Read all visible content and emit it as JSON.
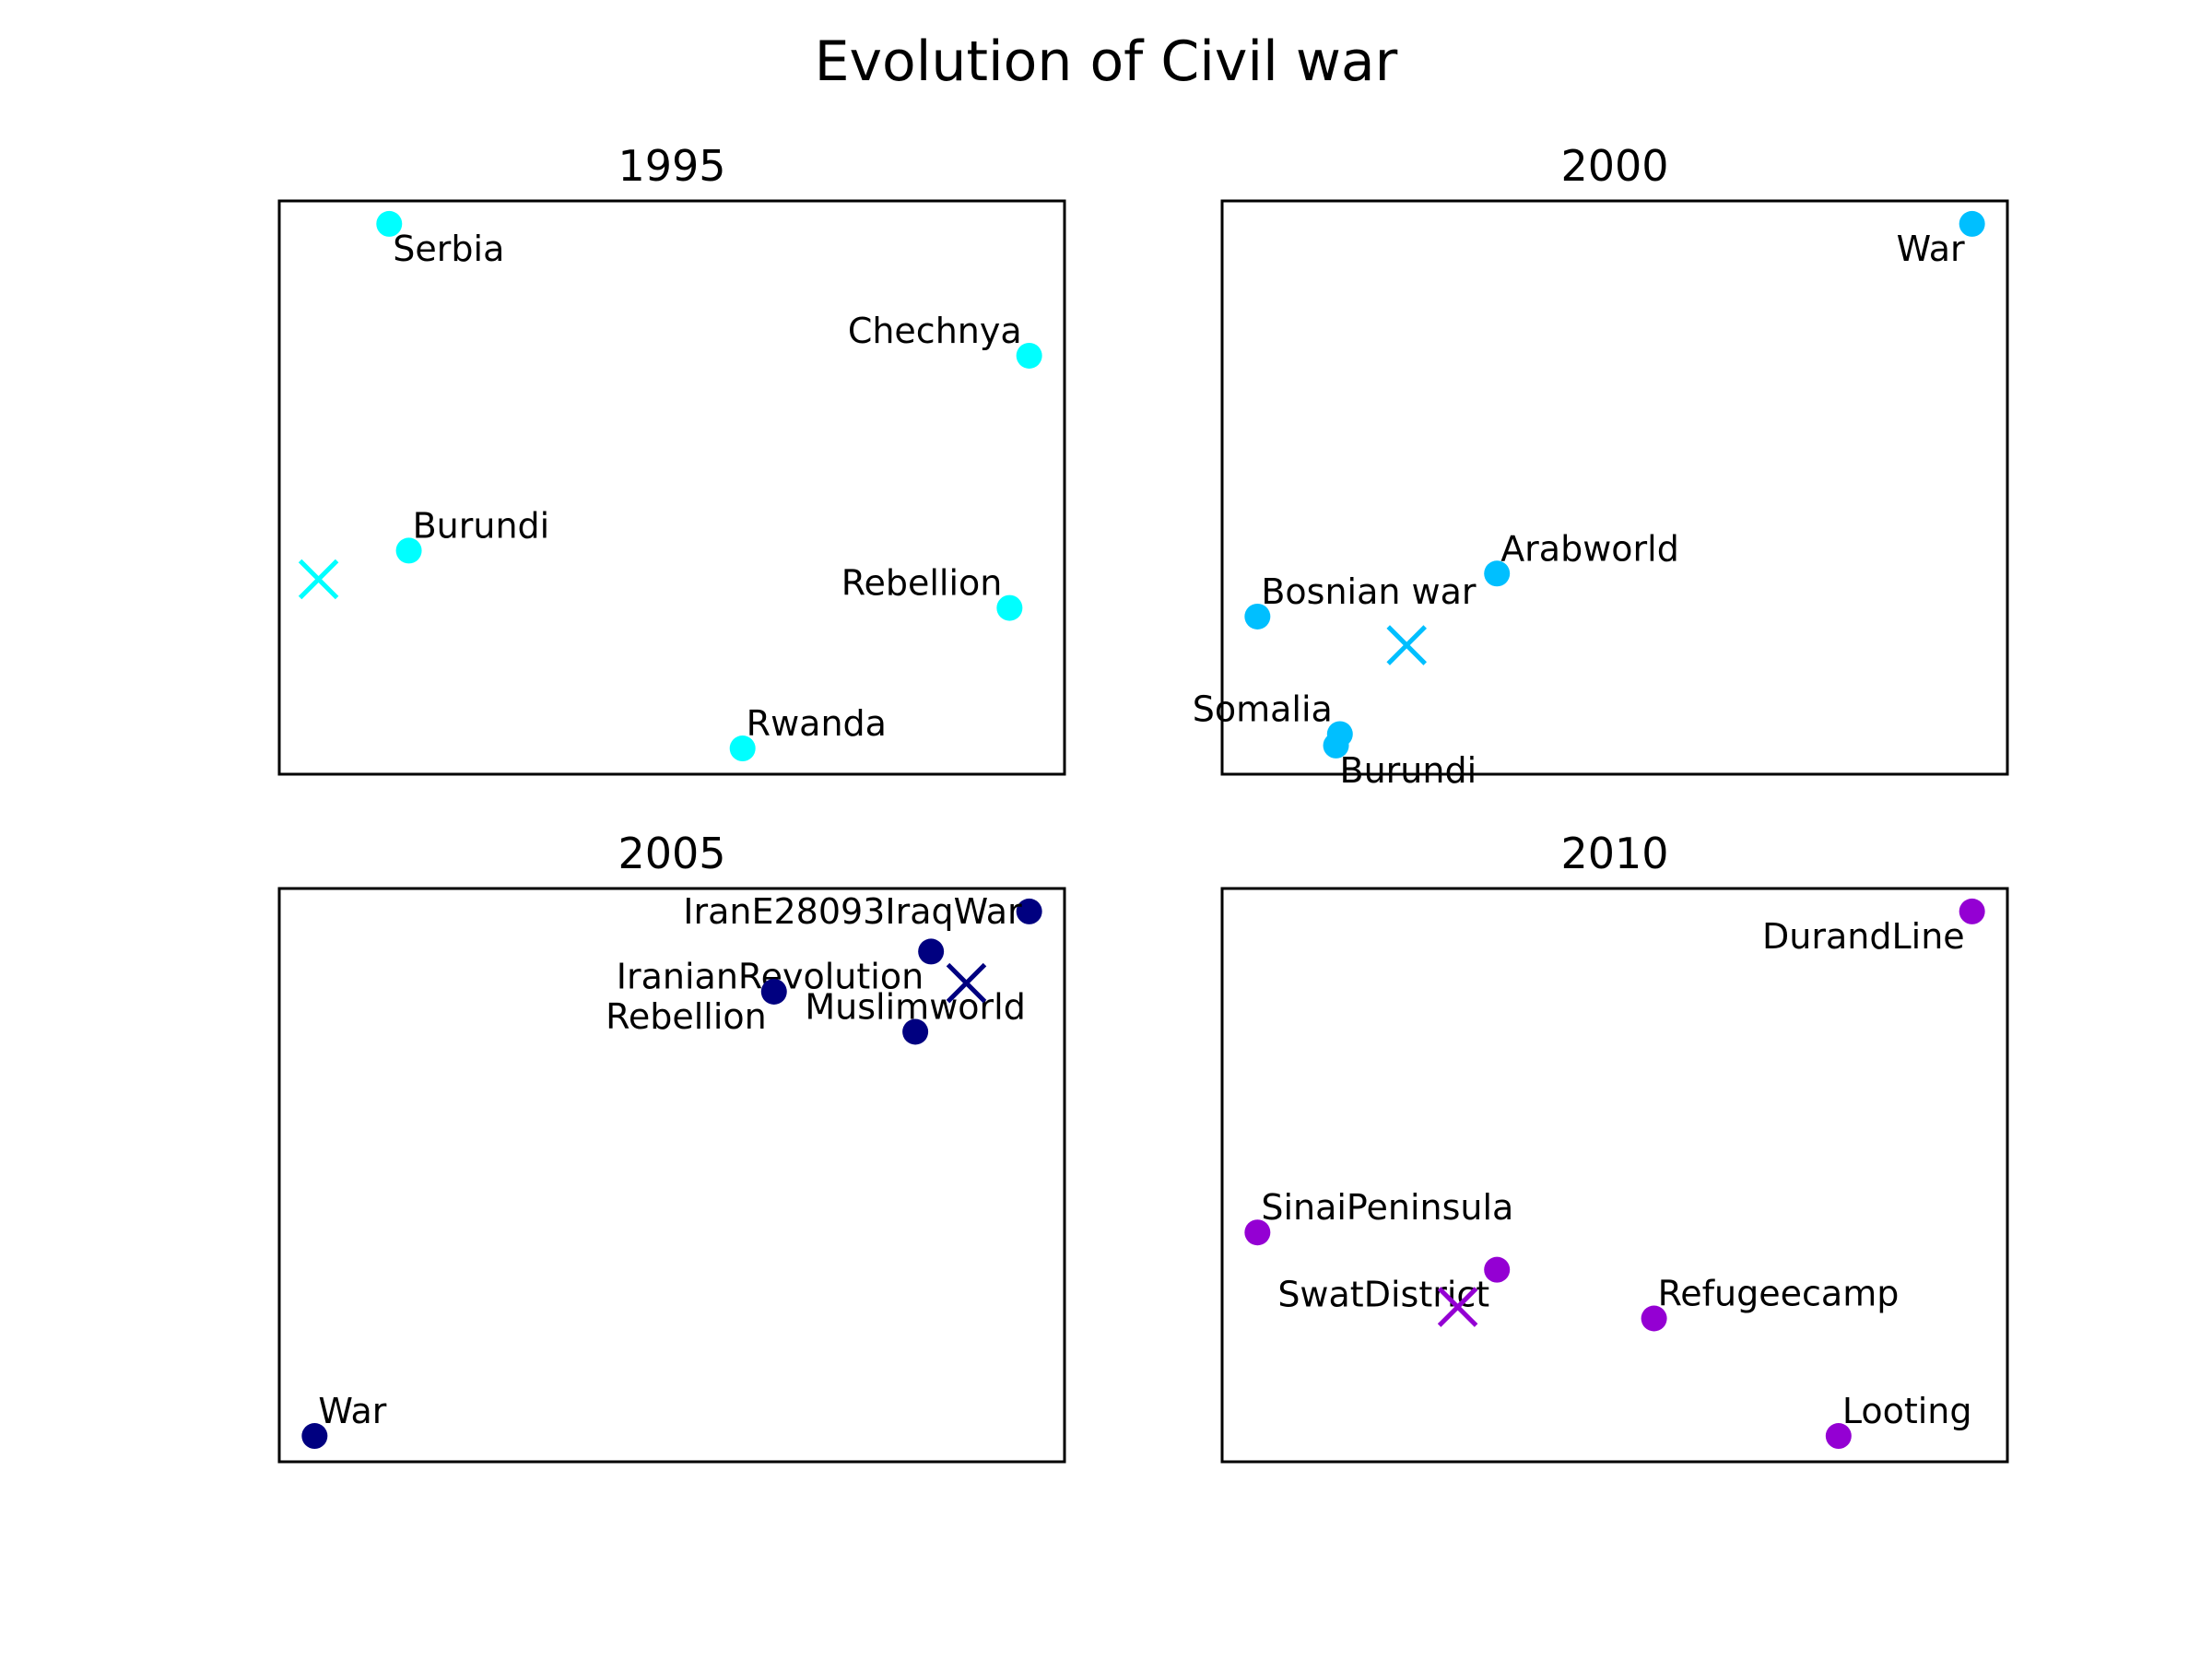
{
  "title": "Evolution of Civil war",
  "chart_data": [
    {
      "type": "scatter",
      "title": "1995",
      "color": "#00ffff",
      "xlim": [
        0,
        100
      ],
      "ylim": [
        0,
        100
      ],
      "axes_visible": false,
      "grid": false,
      "points": [
        {
          "label": "Serbia",
          "x": 14,
          "y": 96,
          "label_pos": "below-right"
        },
        {
          "label": "Chechnya",
          "x": 95.5,
          "y": 73,
          "label_pos": "above-left"
        },
        {
          "label": "Burundi",
          "x": 16.5,
          "y": 39,
          "label_pos": "above-right"
        },
        {
          "label": "Rebellion",
          "x": 93,
          "y": 29,
          "label_pos": "above-left"
        },
        {
          "label": "Rwanda",
          "x": 59,
          "y": 4.5,
          "label_pos": "above-right"
        }
      ],
      "centroid": {
        "x": 5,
        "y": 34
      }
    },
    {
      "type": "scatter",
      "title": "2000",
      "color": "#00bfff",
      "xlim": [
        0,
        100
      ],
      "ylim": [
        0,
        100
      ],
      "axes_visible": false,
      "grid": false,
      "points": [
        {
          "label": "War",
          "x": 95.5,
          "y": 96,
          "label_pos": "below-left"
        },
        {
          "label": "Arabworld",
          "x": 35,
          "y": 35,
          "label_pos": "above-right"
        },
        {
          "label": "Bosnian war",
          "x": 4.5,
          "y": 27.5,
          "label_pos": "above-right"
        },
        {
          "label": "Somalia",
          "x": 15,
          "y": 7,
          "label_pos": "above-left"
        },
        {
          "label": "Burundi",
          "x": 14.5,
          "y": 5,
          "label_pos": "below-right"
        }
      ],
      "centroid": {
        "x": 23.5,
        "y": 22.5
      }
    },
    {
      "type": "scatter",
      "title": "2005",
      "color": "#000080",
      "xlim": [
        0,
        100
      ],
      "ylim": [
        0,
        100
      ],
      "axes_visible": false,
      "grid": false,
      "points": [
        {
          "label": "IranE28093IraqWar",
          "x": 95.5,
          "y": 96,
          "label_pos": "left"
        },
        {
          "label": "IranianRevolution",
          "x": 83,
          "y": 89,
          "label_pos": "below-left"
        },
        {
          "label": "Rebellion",
          "x": 63,
          "y": 82,
          "label_pos": "below-left"
        },
        {
          "label": "Muslimworld",
          "x": 81,
          "y": 75,
          "label_pos": "above"
        },
        {
          "label": "War",
          "x": 4.5,
          "y": 4.5,
          "label_pos": "above-right"
        }
      ],
      "centroid": {
        "x": 87.5,
        "y": 83.5
      }
    },
    {
      "type": "scatter",
      "title": "2010",
      "color": "#9400d3",
      "xlim": [
        0,
        100
      ],
      "ylim": [
        0,
        100
      ],
      "axes_visible": false,
      "grid": false,
      "points": [
        {
          "label": "DurandLine",
          "x": 95.5,
          "y": 96,
          "label_pos": "below-left"
        },
        {
          "label": "SinaiPeninsula",
          "x": 4.5,
          "y": 40,
          "label_pos": "above-right"
        },
        {
          "label": "SwatDistrict",
          "x": 35,
          "y": 33.5,
          "label_pos": "below-left"
        },
        {
          "label": "Refugeecamp",
          "x": 55,
          "y": 25,
          "label_pos": "above-right"
        },
        {
          "label": "Looting",
          "x": 78.5,
          "y": 4.5,
          "label_pos": "above-right"
        }
      ],
      "centroid": {
        "x": 30,
        "y": 27
      }
    }
  ]
}
